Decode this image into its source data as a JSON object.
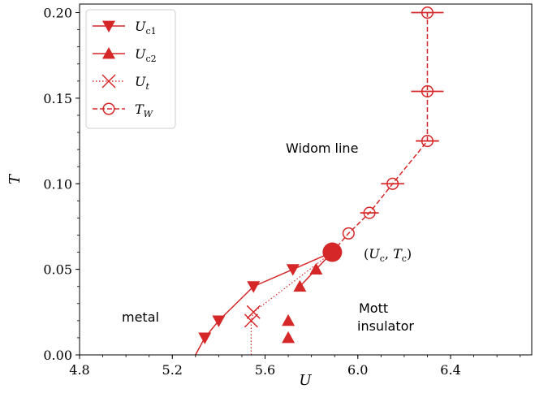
{
  "chart_data": {
    "type": "line",
    "xlabel": "U",
    "ylabel": "T",
    "xlim": [
      4.8,
      6.75
    ],
    "ylim": [
      0.0,
      0.205
    ],
    "x_ticks": [
      "4.8",
      "5.2",
      "5.6",
      "6.0",
      "6.4"
    ],
    "y_ticks": [
      "0.00",
      "0.05",
      "0.10",
      "0.15",
      "0.20"
    ],
    "color": "#d62728",
    "legend_position": "upper-left",
    "series": [
      {
        "name": "U_c1",
        "marker": "triangle-down",
        "linestyle": "solid",
        "x": [
          5.34,
          5.4,
          5.55,
          5.72,
          5.89
        ],
        "y": [
          0.01,
          0.02,
          0.04,
          0.05,
          0.06
        ]
      },
      {
        "name": "U_c2",
        "marker": "triangle-up",
        "linestyle": "solid",
        "x": [
          5.7,
          5.7,
          5.75,
          5.82,
          5.89
        ],
        "y": [
          0.01,
          0.02,
          0.04,
          0.05,
          0.06
        ]
      },
      {
        "name": "U_t",
        "marker": "x",
        "linestyle": "dotted",
        "x": [
          5.54,
          5.54,
          5.55,
          5.89
        ],
        "y": [
          0.0,
          0.02,
          0.025,
          0.06
        ]
      },
      {
        "name": "T_W",
        "marker": "circle-open",
        "linestyle": "dashed",
        "x": [
          5.89,
          5.96,
          6.05,
          6.15,
          6.3,
          6.3,
          6.3
        ],
        "y": [
          0.06,
          0.071,
          0.083,
          0.1,
          0.125,
          0.154,
          0.2
        ],
        "xerr": [
          0.0,
          0.0,
          0.04,
          0.05,
          0.05,
          0.07,
          0.07
        ]
      }
    ],
    "critical_point": {
      "x": 5.89,
      "y": 0.06
    },
    "boundary_curve": {
      "x": [
        5.3,
        5.34,
        5.4,
        5.55,
        5.72,
        5.89
      ],
      "y": [
        0.0,
        0.01,
        0.02,
        0.04,
        0.05,
        0.06
      ]
    },
    "annotations": {
      "widom": "Widom line",
      "metal": "metal",
      "mott_line1": "Mott",
      "mott_line2": "insulator"
    }
  }
}
